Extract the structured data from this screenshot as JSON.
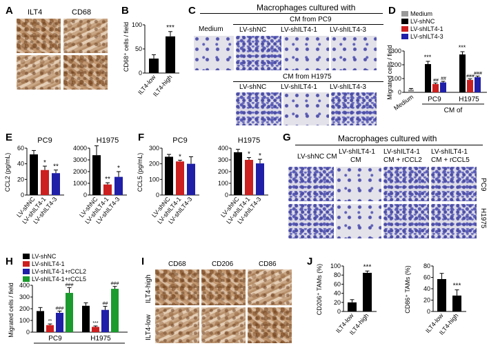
{
  "panels": {
    "A": {
      "letter": "A",
      "labels": [
        "ILT4",
        "CD68"
      ]
    },
    "B": {
      "letter": "B",
      "ylabel": "CD68⁺ cells / field",
      "ytick_labels": [
        "0",
        "50",
        "100"
      ],
      "stars": "***"
    },
    "C": {
      "letter": "C",
      "title": "Macrophages cultured with",
      "medium": "Medium",
      "cm_pc9": "CM from PC9",
      "cm_h1975": "CM from H1975",
      "cols": [
        "LV-shNC",
        "LV-shILT4-1",
        "LV-shILT4-3"
      ]
    },
    "D": {
      "letter": "D",
      "ylabel": "Migrated cells / field",
      "ytick_labels": [
        "0",
        "100",
        "200",
        "300"
      ],
      "groups": [
        "Medium",
        "PC9",
        "H1975"
      ],
      "cm_of": "CM of",
      "legend": [
        "Medium",
        "LV-shNC",
        "LV-shILT4-1",
        "LV-shILT4-3"
      ],
      "stars": "***",
      "hash2": "##",
      "hash3": "###"
    },
    "E": {
      "letter": "E",
      "ylabel": "CCL2 (pg/mL)",
      "pc9": "PC9",
      "h1975": "H1975",
      "pc9_ticks": [
        "0",
        "20",
        "40",
        "60"
      ],
      "h1975_ticks": [
        "0",
        "500",
        "1000",
        "1500",
        "2000",
        "2500",
        "3000",
        "3500",
        "4000"
      ],
      "star1": "*",
      "star2": "**"
    },
    "F": {
      "letter": "F",
      "ylabel": "CCL5 (pg/mL)",
      "pc9": "PC9",
      "h1975": "H1975",
      "pc9_ticks": [
        "0",
        "100",
        "200",
        "300"
      ],
      "h1975_ticks": [
        "0",
        "100",
        "200",
        "300",
        "400"
      ],
      "star1": "*"
    },
    "G": {
      "letter": "G",
      "title": "Macrophages cultured with",
      "cols": [
        "LV-shNC CM",
        "LV-shILT4-1",
        "LV-shILT4-1",
        "LV-shILT4-1"
      ],
      "cols2": [
        "",
        "CM",
        "CM + rCCL2",
        "CM + rCCL5"
      ],
      "rows": [
        "PC9",
        "H1975"
      ]
    },
    "H": {
      "letter": "H",
      "ylabel": "Migrated cells / field",
      "ytick_labels": [
        "0",
        "100",
        "200",
        "300",
        "400"
      ],
      "groups": [
        "PC9",
        "H1975"
      ],
      "legend": [
        "LV-shNC",
        "LV-shILT4-1",
        "LV-shILT4-1+rCCL2",
        "LV-shILT4-1+rCCL5"
      ],
      "stars2": "**",
      "stars3": "***",
      "hash2": "##",
      "hash3": "###"
    },
    "I": {
      "letter": "I",
      "cols": [
        "CD68",
        "CD206",
        "CD86"
      ],
      "rows": [
        "ILT4-high",
        "ILT4-low"
      ]
    },
    "J": {
      "letter": "J",
      "ylabel1": "CD206⁺ TAMs (%)",
      "ylabel2": "CD86⁺ TAMs (%)",
      "ticks1": [
        "0",
        "20",
        "40",
        "60",
        "80",
        "100"
      ],
      "ticks2": [
        "0",
        "20",
        "40",
        "60",
        "80"
      ],
      "stars": "***"
    }
  },
  "x_categories_3": [
    "LV-shNC",
    "LV-shILT4-1",
    "LV-shILT4-3"
  ],
  "x_categories_ilt4": [
    "ILT4-low",
    "ILT4-high"
  ],
  "colors": {
    "black": "#000000",
    "red": "#cc1f1f",
    "blue": "#1f1fa8",
    "green": "#1b9a2e",
    "grey": "#9a9a9a"
  },
  "chart_data": [
    {
      "id": "B",
      "type": "bar",
      "categories": [
        "ILT4-low",
        "ILT4-high"
      ],
      "values": [
        30,
        76
      ],
      "errors": [
        8,
        10
      ],
      "ylabel": "CD68⁺ cells / field",
      "ylim": [
        0,
        100
      ]
    },
    {
      "id": "D",
      "type": "bar",
      "groups": [
        "Medium",
        "PC9",
        "H1975"
      ],
      "series": [
        {
          "name": "Medium",
          "values": [
            20,
            null,
            null
          ]
        },
        {
          "name": "LV-shNC",
          "values": [
            null,
            205,
            275
          ]
        },
        {
          "name": "LV-shILT4-1",
          "values": [
            null,
            60,
            90
          ]
        },
        {
          "name": "LV-shILT4-3",
          "values": [
            null,
            72,
            110
          ]
        }
      ],
      "ylabel": "Migrated cells / field",
      "ylim": [
        0,
        300
      ]
    },
    {
      "id": "E1",
      "type": "bar",
      "categories": [
        "LV-shNC",
        "LV-shILT4-1",
        "LV-shILT4-3"
      ],
      "values": [
        52,
        32,
        28
      ],
      "errors": [
        5,
        5,
        4
      ],
      "ylim": [
        0,
        60
      ],
      "ylabel": "CCL2 (pg/mL)",
      "title": "PC9"
    },
    {
      "id": "E2",
      "type": "bar",
      "categories": [
        "LV-shNC",
        "LV-shILT4-1",
        "LV-shILT4-3"
      ],
      "values": [
        3400,
        900,
        1550
      ],
      "errors": [
        800,
        150,
        450
      ],
      "ylim": [
        0,
        4000
      ],
      "title": "H1975"
    },
    {
      "id": "F1",
      "type": "bar",
      "categories": [
        "LV-shNC",
        "LV-shILT4-1",
        "LV-shILT4-3"
      ],
      "values": [
        245,
        215,
        200
      ],
      "errors": [
        15,
        8,
        45
      ],
      "ylim": [
        0,
        300
      ],
      "ylabel": "CCL5 (pg/mL)",
      "title": "PC9"
    },
    {
      "id": "F2",
      "type": "bar",
      "categories": [
        "LV-shNC",
        "LV-shILT4-1",
        "LV-shILT4-3"
      ],
      "values": [
        365,
        300,
        270
      ],
      "errors": [
        25,
        20,
        35
      ],
      "ylim": [
        0,
        400
      ],
      "title": "H1975"
    },
    {
      "id": "H",
      "type": "bar",
      "groups": [
        "PC9",
        "H1975"
      ],
      "series": [
        {
          "name": "LV-shNC",
          "values": [
            180,
            225
          ]
        },
        {
          "name": "LV-shILT4-1",
          "values": [
            60,
            45
          ]
        },
        {
          "name": "LV-shILT4-1+rCCL2",
          "values": [
            165,
            190
          ]
        },
        {
          "name": "LV-shILT4-1+rCCL5",
          "values": [
            335,
            370
          ]
        }
      ],
      "errors": [
        [
          30,
          25
        ],
        [
          10,
          8
        ],
        [
          15,
          30
        ],
        [
          45,
          20
        ]
      ],
      "ylabel": "Migrated cells / field",
      "ylim": [
        0,
        400
      ]
    },
    {
      "id": "J1",
      "type": "bar",
      "categories": [
        "ILT4-low",
        "ILT4-high"
      ],
      "values": [
        20,
        85
      ],
      "errors": [
        6,
        4
      ],
      "ylim": [
        0,
        100
      ],
      "ylabel": "CD206⁺ TAMs (%)"
    },
    {
      "id": "J2",
      "type": "bar",
      "categories": [
        "ILT4-low",
        "ILT4-high"
      ],
      "values": [
        57,
        28
      ],
      "errors": [
        10,
        10
      ],
      "ylim": [
        0,
        80
      ],
      "ylabel": "CD86⁺ TAMs (%)"
    }
  ]
}
